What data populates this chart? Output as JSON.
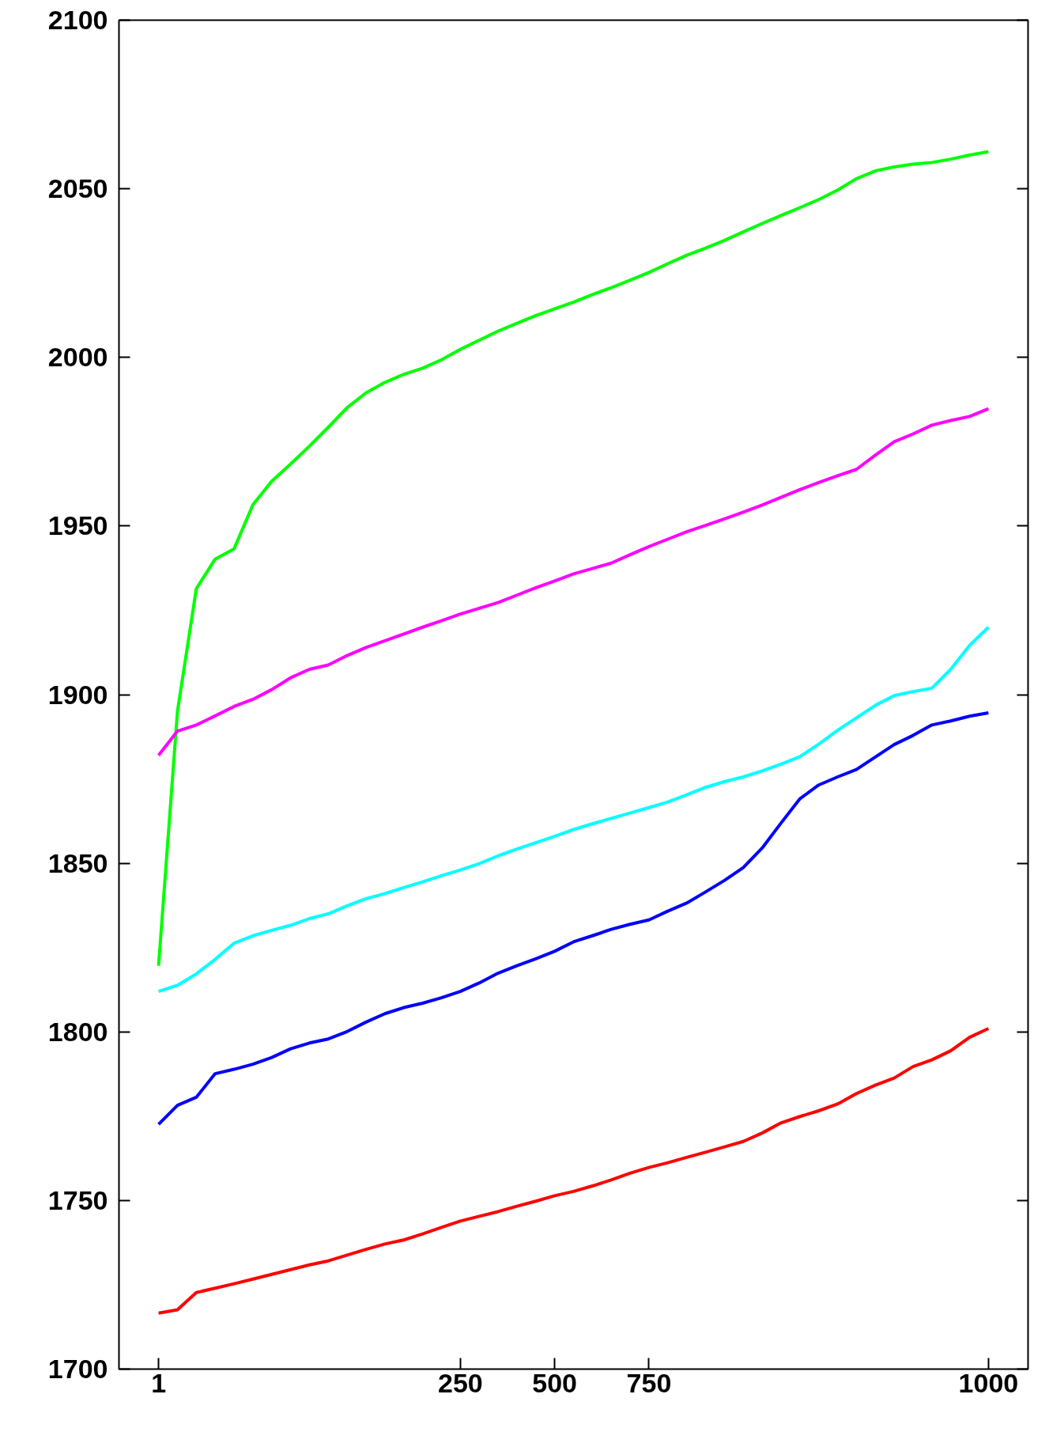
{
  "chart_data": {
    "type": "line",
    "categories": [
      "1",
      null,
      null,
      null,
      null,
      null,
      null,
      null,
      null,
      null,
      null,
      null,
      null,
      null,
      null,
      null,
      "250",
      null,
      null,
      null,
      null,
      "500",
      null,
      null,
      null,
      null,
      "750",
      null,
      null,
      null,
      null,
      null,
      null,
      null,
      null,
      null,
      null,
      null,
      null,
      null,
      null,
      null,
      null,
      null,
      "1000"
    ],
    "ylim": [
      1700,
      2100
    ],
    "yticks": [
      1700,
      1750,
      1800,
      1850,
      1900,
      1950,
      2000,
      2050,
      2100
    ],
    "grid": false,
    "marker": "none",
    "line_style": "solid",
    "series": [
      {
        "color": "#00ff00",
        "values": [
          1819.6,
          1895,
          1931.4,
          1940.2,
          1943.2,
          1956.3,
          1963.3,
          1968.4,
          1973.7,
          1979.3,
          1985.1,
          1989.5,
          1992.6,
          1995,
          1996.8,
          1999.3,
          2002.4,
          2005.1,
          2007.8,
          2010.1,
          2012.4,
          2014.4,
          2016.4,
          2018.6,
          2020.7,
          2022.9,
          2025.2,
          2027.8,
          2030.3,
          2032.4,
          2034.7,
          2037.2,
          2039.7,
          2042.1,
          2044.4,
          2046.8,
          2049.6,
          2053,
          2055.3,
          2056.5,
          2057.3,
          2057.8,
          2058.8,
          2060,
          2061
        ]
      },
      {
        "color": "#ff00ff",
        "values": [
          1882,
          1889.2,
          1891,
          1893.7,
          1896.5,
          1898.6,
          1901.5,
          1905,
          1907.5,
          1908.8,
          1911.6,
          1914,
          1916,
          1918,
          1920,
          1921.9,
          1923.9,
          1925.6,
          1927.3,
          1929.5,
          1931.7,
          1933.7,
          1935.8,
          1937.4,
          1939,
          1941.5,
          1943.9,
          1946.1,
          1948.3,
          1950.2,
          1952.1,
          1954.1,
          1956.2,
          1958.5,
          1960.8,
          1962.9,
          1964.9,
          1966.8,
          1971,
          1975,
          1977.3,
          1979.9,
          1981.3,
          1982.5,
          1984.8
        ]
      },
      {
        "color": "#00ffff",
        "values": [
          1812,
          1813.8,
          1817.2,
          1821.5,
          1826.3,
          1828.5,
          1830.1,
          1831.6,
          1833.6,
          1835,
          1837.4,
          1839.5,
          1841,
          1842.8,
          1844.5,
          1846.3,
          1848,
          1849.9,
          1852.2,
          1854.2,
          1856.1,
          1858,
          1860,
          1861.7,
          1863.3,
          1864.9,
          1866.5,
          1868.2,
          1870.3,
          1872.5,
          1874.2,
          1875.6,
          1877.4,
          1879.4,
          1881.6,
          1885.3,
          1889.4,
          1893.1,
          1896.8,
          1899.7,
          1900.9,
          1901.9,
          1907.5,
          1914.6,
          1920
        ]
      },
      {
        "color": "#0000ff",
        "values": [
          1772.6,
          1778.2,
          1780.6,
          1787.6,
          1788.9,
          1790.4,
          1792.4,
          1795,
          1796.7,
          1797.9,
          1800.1,
          1802.9,
          1805.4,
          1807.2,
          1808.5,
          1810.1,
          1812,
          1814.5,
          1817.4,
          1819.6,
          1821.7,
          1823.9,
          1826.7,
          1828.5,
          1830.4,
          1831.9,
          1833.2,
          1835.8,
          1838.2,
          1841.5,
          1844.9,
          1848.7,
          1854.5,
          1861.9,
          1869.1,
          1873.2,
          1875.6,
          1877.8,
          1881.5,
          1885.2,
          1887.9,
          1891,
          1892.2,
          1893.6,
          1894.6
        ]
      },
      {
        "color": "#ff0000",
        "values": [
          1716.6,
          1717.6,
          1722.7,
          1724,
          1725.3,
          1726.7,
          1728.1,
          1729.5,
          1730.9,
          1732.1,
          1733.8,
          1735.5,
          1737.1,
          1738.3,
          1740.1,
          1742,
          1743.9,
          1745.3,
          1746.7,
          1748.3,
          1749.8,
          1751.4,
          1752.7,
          1754.3,
          1756.1,
          1758.1,
          1759.8,
          1761.2,
          1762.8,
          1764.3,
          1765.9,
          1767.5,
          1770,
          1773,
          1774.9,
          1776.6,
          1778.6,
          1781.7,
          1784.2,
          1786.3,
          1789.7,
          1791.7,
          1794.4,
          1798.4,
          1801
        ]
      }
    ]
  }
}
